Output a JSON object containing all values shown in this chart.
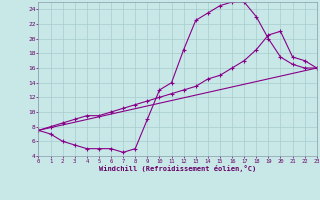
{
  "xlabel": "Windchill (Refroidissement éolien,°C)",
  "background_color": "#c8e8e8",
  "grid_color": "#a8cccc",
  "line_color": "#880088",
  "xmin": 0,
  "xmax": 23,
  "ymin": 4,
  "ymax": 25,
  "yticks": [
    4,
    6,
    8,
    10,
    12,
    14,
    16,
    18,
    20,
    22,
    24
  ],
  "line1_x": [
    0,
    1,
    2,
    3,
    4,
    5,
    6,
    7,
    8,
    9,
    10,
    11,
    12,
    13,
    14,
    15,
    16,
    17,
    18,
    19,
    20,
    21,
    22,
    23
  ],
  "line1_y": [
    7.5,
    7.0,
    6.0,
    5.5,
    5.0,
    5.0,
    5.0,
    4.5,
    5.0,
    9.0,
    13.0,
    14.0,
    18.5,
    22.5,
    23.5,
    24.5,
    25.0,
    25.0,
    23.0,
    20.0,
    17.5,
    16.5,
    16.0,
    16.0
  ],
  "line2_x": [
    0,
    1,
    2,
    3,
    4,
    5,
    6,
    7,
    8,
    9,
    10,
    11,
    12,
    13,
    14,
    15,
    16,
    17,
    18,
    19,
    20,
    21,
    22,
    23
  ],
  "line2_y": [
    7.5,
    8.0,
    8.5,
    9.0,
    9.5,
    9.5,
    10.0,
    10.5,
    11.0,
    11.5,
    12.0,
    12.5,
    13.0,
    13.5,
    14.5,
    15.0,
    16.0,
    17.0,
    18.5,
    20.5,
    21.0,
    17.5,
    17.0,
    16.0
  ],
  "line3_x": [
    0,
    23
  ],
  "line3_y": [
    7.5,
    16.0
  ]
}
